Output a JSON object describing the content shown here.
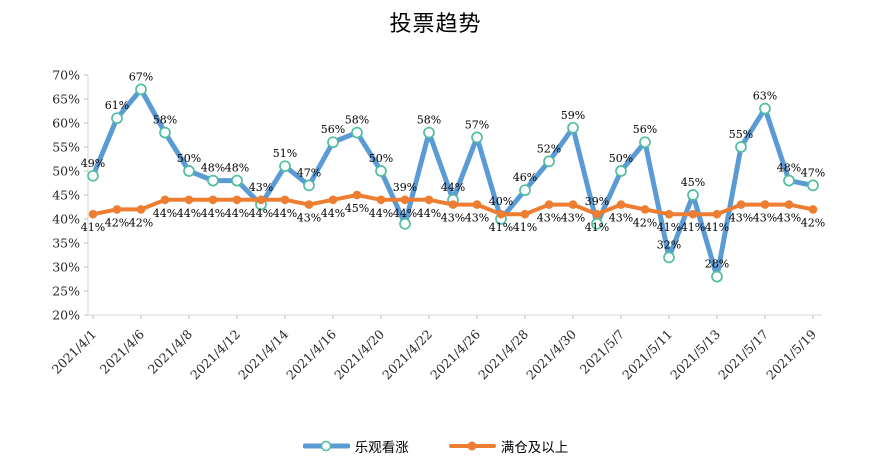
{
  "chart_data": {
    "type": "line",
    "title": "投票趋势",
    "x_tick_labels": [
      "2021/4/1",
      "2021/4/6",
      "2021/4/8",
      "2021/4/12",
      "2021/4/14",
      "2021/4/16",
      "2021/4/20",
      "2021/4/22",
      "2021/4/26",
      "2021/4/28",
      "2021/4/30",
      "2021/5/7",
      "2021/5/11",
      "2021/5/13",
      "2021/5/17",
      "2021/5/19"
    ],
    "x_label_every": 2,
    "n_points": 31,
    "ylim": [
      20,
      70
    ],
    "y_tick_labels": [
      "70%",
      "65%",
      "60%",
      "55%",
      "50%",
      "45%",
      "40%",
      "35%",
      "30%",
      "25%",
      "20%"
    ],
    "grid": "none",
    "legend_position": "bottom",
    "data_label_suffix": "%",
    "axis_color": "#D9D9D9",
    "tick_color": "#BFBFBF",
    "series": [
      {
        "name": "乐观看涨",
        "color": "#5B9BD5",
        "marker": "open-circle",
        "marker_fill": "#FFFFFF",
        "marker_ring_color": "#50BEA0",
        "label_position": "above",
        "values": [
          49,
          61,
          67,
          58,
          50,
          48,
          48,
          43,
          51,
          47,
          56,
          58,
          50,
          39,
          58,
          44,
          57,
          40,
          46,
          52,
          59,
          39,
          50,
          56,
          32,
          45,
          28,
          55,
          63,
          48,
          47
        ]
      },
      {
        "name": "满仓及以上",
        "color": "#ED7D31",
        "marker": "filled-circle",
        "label_position": "below",
        "values": [
          41,
          42,
          42,
          44,
          44,
          44,
          44,
          44,
          44,
          43,
          44,
          45,
          44,
          44,
          44,
          43,
          43,
          41,
          41,
          43,
          43,
          41,
          43,
          42,
          41,
          41,
          41,
          43,
          43,
          43,
          42
        ]
      }
    ]
  }
}
